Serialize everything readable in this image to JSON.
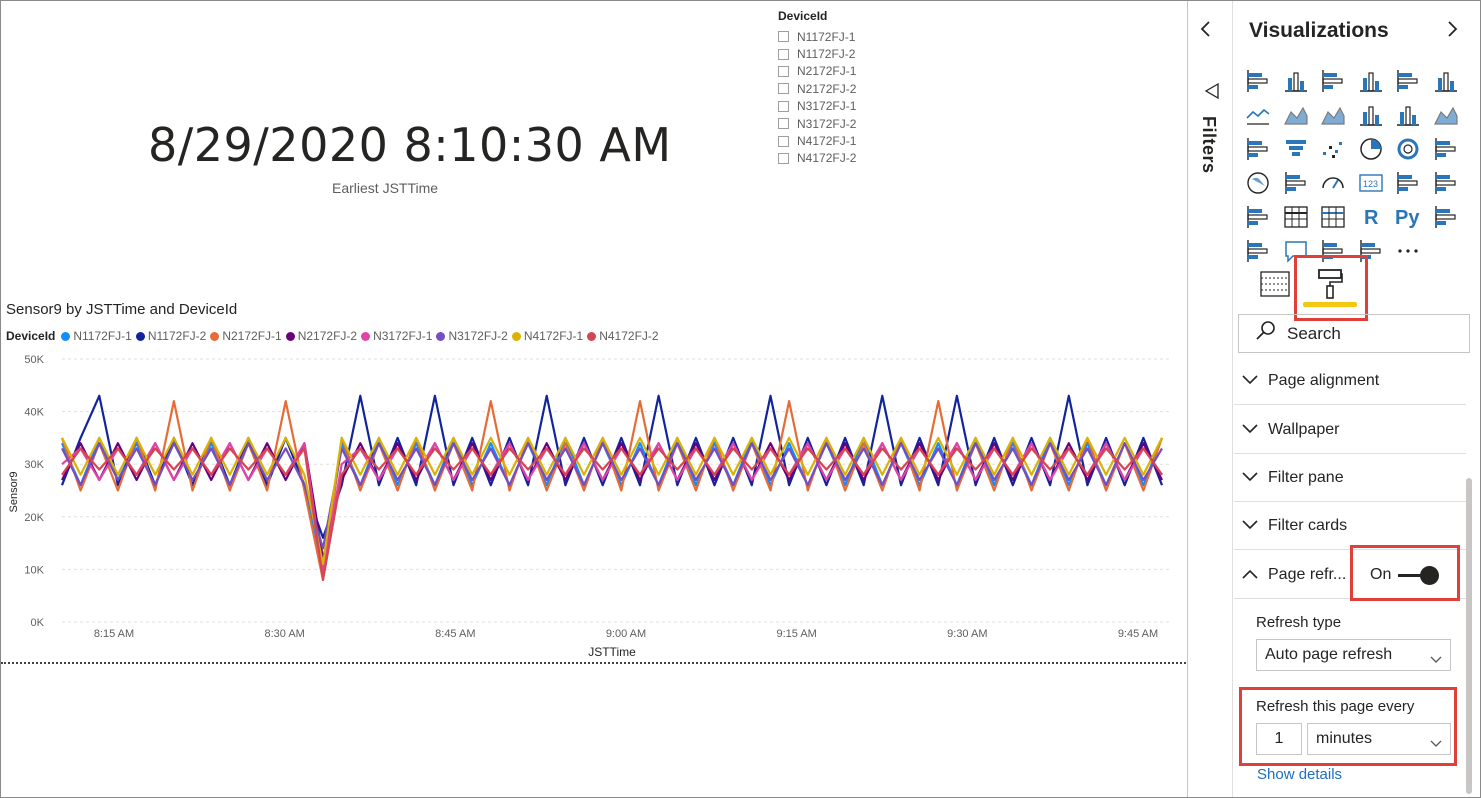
{
  "card": {
    "value": "8/29/2020 8:10:30 AM",
    "label": "Earliest JSTTime"
  },
  "slicer": {
    "title": "DeviceId",
    "items": [
      "N1172FJ-1",
      "N1172FJ-2",
      "N2172FJ-1",
      "N2172FJ-2",
      "N3172FJ-1",
      "N3172FJ-2",
      "N4172FJ-1",
      "N4172FJ-2"
    ]
  },
  "chart": {
    "title": "Sensor9 by JSTTime and DeviceId"
  },
  "chart_data": {
    "type": "line",
    "title": "Sensor9 by JSTTime and DeviceId",
    "xlabel": "JSTTime",
    "ylabel": "Sensor9",
    "legend_title": "DeviceId",
    "legend_position": "top-left",
    "ylim": [
      0,
      50000
    ],
    "yticks": [
      "0K",
      "10K",
      "20K",
      "30K",
      "40K",
      "50K"
    ],
    "xticks": [
      "8:15 AM",
      "8:30 AM",
      "8:45 AM",
      "9:00 AM",
      "9:15 AM",
      "9:30 AM",
      "9:45 AM"
    ],
    "grid": true,
    "series": [
      {
        "name": "N1172FJ-1",
        "color": "#118dff",
        "values": [
          34000,
          26000,
          35000,
          27000,
          34000,
          26000,
          35000,
          26000,
          34000,
          26000,
          34000,
          26000,
          35000,
          26000,
          10000,
          34000,
          26000,
          35000,
          26000,
          34000,
          26000,
          35000,
          26000,
          34000,
          26000,
          34000,
          26000,
          35000,
          26000,
          34000,
          26000,
          34000,
          26000,
          35000,
          26000,
          34000,
          26000,
          35000,
          26000,
          34000,
          26000,
          34000,
          26000,
          35000,
          26000,
          34000,
          26000,
          34000,
          26000,
          35000,
          26000,
          34000,
          26000,
          35000,
          26000,
          34000,
          26000,
          34000,
          26000,
          35000
        ]
      },
      {
        "name": "N1172FJ-2",
        "color": "#12239e",
        "values": [
          26000,
          35000,
          43000,
          26000,
          35000,
          26000,
          35000,
          26000,
          35000,
          26000,
          35000,
          26000,
          35000,
          26000,
          16000,
          26000,
          43000,
          26000,
          35000,
          26000,
          43000,
          26000,
          35000,
          26000,
          35000,
          26000,
          43000,
          26000,
          35000,
          26000,
          35000,
          26000,
          43000,
          26000,
          35000,
          26000,
          35000,
          26000,
          43000,
          26000,
          35000,
          26000,
          35000,
          26000,
          43000,
          26000,
          35000,
          26000,
          43000,
          26000,
          35000,
          26000,
          35000,
          26000,
          43000,
          26000,
          35000,
          26000,
          35000,
          26000
        ]
      },
      {
        "name": "N2172FJ-1",
        "color": "#e66c37",
        "values": [
          35000,
          25000,
          34000,
          25000,
          35000,
          25000,
          42000,
          25000,
          35000,
          25000,
          34000,
          25000,
          42000,
          25000,
          8000,
          35000,
          25000,
          34000,
          25000,
          35000,
          25000,
          34000,
          25000,
          42000,
          25000,
          35000,
          25000,
          34000,
          25000,
          35000,
          25000,
          42000,
          25000,
          34000,
          25000,
          35000,
          25000,
          34000,
          25000,
          42000,
          25000,
          35000,
          25000,
          34000,
          25000,
          35000,
          25000,
          42000,
          25000,
          34000,
          25000,
          35000,
          25000,
          34000,
          25000,
          35000,
          25000,
          34000,
          25000,
          35000
        ]
      },
      {
        "name": "N2172FJ-2",
        "color": "#6b007b",
        "values": [
          27000,
          34000,
          27000,
          34000,
          27000,
          34000,
          27000,
          34000,
          27000,
          34000,
          27000,
          34000,
          27000,
          34000,
          12000,
          27000,
          34000,
          27000,
          34000,
          27000,
          34000,
          27000,
          34000,
          27000,
          34000,
          27000,
          34000,
          27000,
          34000,
          27000,
          34000,
          27000,
          34000,
          27000,
          34000,
          27000,
          34000,
          27000,
          34000,
          27000,
          34000,
          27000,
          34000,
          27000,
          34000,
          27000,
          34000,
          27000,
          34000,
          27000,
          34000,
          27000,
          34000,
          27000,
          34000,
          27000,
          34000,
          27000,
          34000,
          27000
        ]
      },
      {
        "name": "N3172FJ-1",
        "color": "#e044a7",
        "values": [
          30000,
          33000,
          27000,
          33000,
          28000,
          34000,
          27000,
          33000,
          28000,
          34000,
          27000,
          33000,
          28000,
          34000,
          9000,
          30000,
          33000,
          27000,
          33000,
          28000,
          34000,
          27000,
          33000,
          28000,
          34000,
          27000,
          33000,
          28000,
          34000,
          27000,
          33000,
          28000,
          34000,
          27000,
          33000,
          28000,
          34000,
          27000,
          33000,
          28000,
          34000,
          27000,
          33000,
          28000,
          34000,
          27000,
          33000,
          28000,
          34000,
          27000,
          33000,
          28000,
          34000,
          27000,
          33000,
          28000,
          34000,
          27000,
          33000,
          28000
        ]
      },
      {
        "name": "N3172FJ-2",
        "color": "#744ec2",
        "values": [
          33000,
          26000,
          34000,
          27000,
          33000,
          26000,
          34000,
          27000,
          33000,
          26000,
          34000,
          27000,
          33000,
          26000,
          14000,
          33000,
          26000,
          34000,
          27000,
          33000,
          26000,
          34000,
          27000,
          33000,
          26000,
          34000,
          27000,
          33000,
          26000,
          34000,
          27000,
          33000,
          26000,
          34000,
          27000,
          33000,
          26000,
          34000,
          27000,
          33000,
          26000,
          34000,
          27000,
          33000,
          26000,
          34000,
          27000,
          33000,
          26000,
          34000,
          27000,
          33000,
          26000,
          34000,
          27000,
          33000,
          26000,
          34000,
          27000,
          33000
        ]
      },
      {
        "name": "N4172FJ-1",
        "color": "#d9b300",
        "values": [
          35000,
          28000,
          35000,
          28000,
          35000,
          28000,
          35000,
          28000,
          35000,
          28000,
          35000,
          28000,
          35000,
          28000,
          11000,
          35000,
          28000,
          35000,
          28000,
          35000,
          28000,
          35000,
          28000,
          35000,
          28000,
          35000,
          28000,
          35000,
          28000,
          35000,
          28000,
          35000,
          28000,
          35000,
          28000,
          35000,
          28000,
          35000,
          28000,
          35000,
          28000,
          35000,
          28000,
          35000,
          28000,
          35000,
          28000,
          35000,
          28000,
          35000,
          28000,
          35000,
          28000,
          35000,
          28000,
          35000,
          28000,
          35000,
          28000,
          35000
        ]
      },
      {
        "name": "N4172FJ-2",
        "color": "#d64550",
        "values": [
          28000,
          33000,
          29000,
          33000,
          28000,
          33000,
          29000,
          33000,
          28000,
          33000,
          29000,
          33000,
          28000,
          33000,
          8000,
          28000,
          33000,
          29000,
          33000,
          28000,
          33000,
          29000,
          33000,
          28000,
          33000,
          29000,
          33000,
          28000,
          33000,
          29000,
          33000,
          28000,
          33000,
          29000,
          33000,
          28000,
          33000,
          29000,
          33000,
          28000,
          33000,
          29000,
          33000,
          28000,
          33000,
          29000,
          33000,
          28000,
          33000,
          29000,
          33000,
          28000,
          33000,
          29000,
          33000,
          28000,
          33000,
          29000,
          33000,
          28000
        ]
      }
    ]
  },
  "filters": {
    "label": "Filters"
  },
  "viz_pane": {
    "title": "Visualizations",
    "icons": [
      "stacked-bar-icon",
      "stacked-column-icon",
      "clustered-bar-icon",
      "clustered-column-icon",
      "100-stacked-bar-icon",
      "100-stacked-column-icon",
      "line-chart-icon",
      "area-chart-icon",
      "stacked-area-icon",
      "line-clustered-column-icon",
      "line-stacked-column-icon",
      "ribbon-chart-icon",
      "waterfall-icon",
      "funnel-icon",
      "scatter-icon",
      "pie-chart-icon",
      "donut-chart-icon",
      "treemap-icon",
      "map-icon",
      "filled-map-icon",
      "gauge-icon",
      "card-icon",
      "multi-row-card-icon",
      "kpi-icon",
      "slicer-icon",
      "table-icon",
      "matrix-icon",
      "r-visual-icon",
      "python-visual-icon",
      "key-influencers-icon",
      "decomposition-tree-icon",
      "qa-icon",
      "smart-narrative-icon",
      "power-apps-icon",
      "more-icon"
    ],
    "search_placeholder": "Search",
    "sections": [
      "Page alignment",
      "Wallpaper",
      "Filter pane",
      "Filter cards"
    ],
    "page_refresh": {
      "label": "Page refr...",
      "toggle_label": "On",
      "toggle_on": true,
      "refresh_type_label": "Refresh type",
      "refresh_type_value": "Auto page refresh",
      "interval_label": "Refresh this page every",
      "interval_value": "1",
      "interval_unit": "minutes",
      "show_details": "Show details"
    }
  },
  "colors": {
    "highlight": "#e0403a",
    "accent": "#f2c811",
    "link": "#1d6fc4",
    "icon_blue": "#2b76b9"
  }
}
